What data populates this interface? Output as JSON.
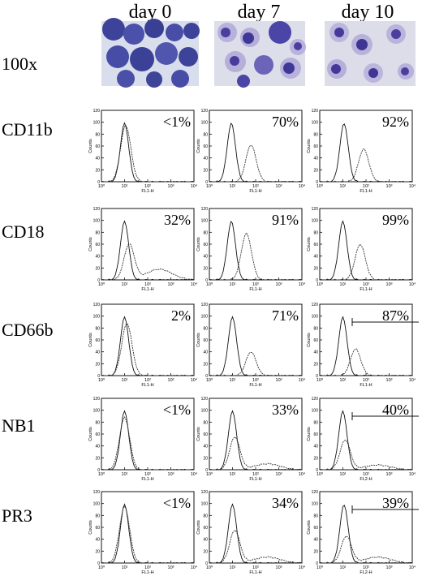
{
  "figure": {
    "columns": [
      "day 0",
      "day 7",
      "day 10"
    ],
    "image_row_label": "100x",
    "rows": [
      {
        "marker": "CD11b",
        "percents": [
          "<1%",
          "70%",
          "92%"
        ],
        "xaxis": [
          "FL1-H",
          "FL1-H",
          "FL1-H"
        ]
      },
      {
        "marker": "CD18",
        "percents": [
          "32%",
          "91%",
          "99%"
        ],
        "xaxis": [
          "FL1-H",
          "FL1-H",
          "FL1-H"
        ]
      },
      {
        "marker": "CD66b",
        "percents": [
          "2%",
          "71%",
          "87%"
        ],
        "xaxis": [
          "FL1-H",
          "FL1-H",
          "FL1-H"
        ]
      },
      {
        "marker": "NB1",
        "percents": [
          "<1%",
          "33%",
          "40%"
        ],
        "xaxis": [
          "FL1-H",
          "FL1-H",
          "FL2-H"
        ]
      },
      {
        "marker": "PR3",
        "percents": [
          "<1%",
          "34%",
          "39%"
        ],
        "xaxis": [
          "FL1-H",
          "FL1-H",
          "FL2-H"
        ]
      }
    ],
    "yaxis_label": "Counts",
    "yticks": [
      "0",
      "20",
      "40",
      "60",
      "80",
      "100",
      "120"
    ],
    "xticks": [
      "10⁰",
      "10¹",
      "10²",
      "10³",
      "10⁴"
    ]
  },
  "colors": {
    "stain_background": "#d8dbe8",
    "cell_dark": "#3b3f9a",
    "cell_light": "#7a72c0",
    "granule": "#b9b2dc",
    "line": "#111111"
  },
  "chart_data": {
    "type": "line",
    "title": "",
    "xlabel": "FL1-H / FL2-H",
    "ylabel": "Counts",
    "xscale": "log",
    "xlim": [
      1,
      10000
    ],
    "ylim": [
      0,
      120
    ],
    "series": [
      {
        "values": []
      }
    ]
  }
}
